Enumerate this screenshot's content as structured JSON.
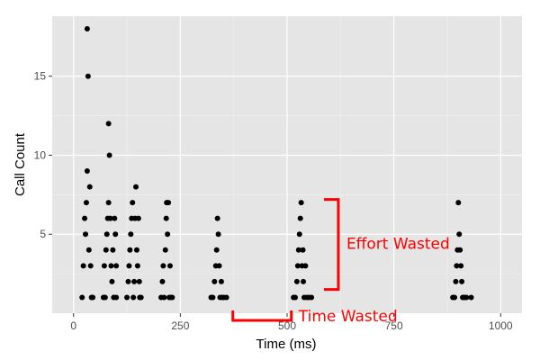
{
  "chart_data": {
    "type": "scatter",
    "title": "",
    "xlabel": "Time (ms)",
    "ylabel": "Call Count",
    "xlim": [
      -50,
      1050
    ],
    "ylim": [
      0,
      18.8
    ],
    "x_ticks": [
      0,
      250,
      500,
      750,
      1000
    ],
    "y_ticks": [
      5,
      10,
      15
    ],
    "grid": true,
    "legend": "none",
    "colors": {
      "panel": "#e5e5e5",
      "grid_major": "#ffffff",
      "grid_minor": "#f2f2f2",
      "points": "#000000",
      "annotation": "#ff0000"
    },
    "series": [
      {
        "points": [
          [
            20,
            1
          ],
          [
            23,
            3
          ],
          [
            26,
            6
          ],
          [
            28,
            5
          ],
          [
            30,
            7
          ],
          [
            32,
            9
          ],
          [
            32,
            18
          ],
          [
            34,
            15
          ],
          [
            36,
            4
          ],
          [
            38,
            8
          ],
          [
            40,
            3
          ],
          [
            42,
            1
          ],
          [
            45,
            1
          ],
          [
            70,
            1
          ],
          [
            72,
            3
          ],
          [
            74,
            1
          ],
          [
            76,
            4
          ],
          [
            78,
            5
          ],
          [
            80,
            6
          ],
          [
            82,
            7
          ],
          [
            82,
            12
          ],
          [
            84,
            10
          ],
          [
            86,
            6
          ],
          [
            88,
            3
          ],
          [
            90,
            2
          ],
          [
            92,
            4
          ],
          [
            94,
            1
          ],
          [
            96,
            6
          ],
          [
            98,
            5
          ],
          [
            100,
            1
          ],
          [
            100,
            3
          ],
          [
            125,
            1
          ],
          [
            128,
            2
          ],
          [
            130,
            3
          ],
          [
            132,
            4
          ],
          [
            134,
            5
          ],
          [
            136,
            6
          ],
          [
            138,
            7
          ],
          [
            140,
            1
          ],
          [
            142,
            2
          ],
          [
            144,
            6
          ],
          [
            146,
            8
          ],
          [
            148,
            4
          ],
          [
            150,
            3
          ],
          [
            152,
            6
          ],
          [
            154,
            2
          ],
          [
            155,
            1
          ],
          [
            158,
            1
          ],
          [
            205,
            1
          ],
          [
            208,
            2
          ],
          [
            210,
            3
          ],
          [
            212,
            1
          ],
          [
            215,
            4
          ],
          [
            217,
            6
          ],
          [
            218,
            7
          ],
          [
            220,
            5
          ],
          [
            222,
            7
          ],
          [
            224,
            1
          ],
          [
            226,
            3
          ],
          [
            228,
            1
          ],
          [
            231,
            1
          ],
          [
            322,
            1
          ],
          [
            326,
            1
          ],
          [
            330,
            2
          ],
          [
            333,
            3
          ],
          [
            335,
            4
          ],
          [
            337,
            6
          ],
          [
            339,
            5
          ],
          [
            341,
            3
          ],
          [
            343,
            1
          ],
          [
            346,
            2
          ],
          [
            348,
            1
          ],
          [
            352,
            1
          ],
          [
            358,
            1
          ],
          [
            515,
            1
          ],
          [
            519,
            1
          ],
          [
            523,
            2
          ],
          [
            525,
            3
          ],
          [
            527,
            4
          ],
          [
            529,
            5
          ],
          [
            531,
            6
          ],
          [
            533,
            7
          ],
          [
            535,
            3
          ],
          [
            537,
            4
          ],
          [
            538,
            2
          ],
          [
            540,
            1
          ],
          [
            543,
            3
          ],
          [
            546,
            1
          ],
          [
            551,
            1
          ],
          [
            557,
            1
          ],
          [
            888,
            1
          ],
          [
            892,
            1
          ],
          [
            895,
            2
          ],
          [
            897,
            3
          ],
          [
            899,
            4
          ],
          [
            901,
            7
          ],
          [
            903,
            5
          ],
          [
            905,
            4
          ],
          [
            907,
            3
          ],
          [
            909,
            2
          ],
          [
            911,
            1
          ],
          [
            913,
            1
          ],
          [
            916,
            1
          ],
          [
            920,
            1
          ],
          [
            931,
            1
          ]
        ]
      }
    ],
    "annotations": [
      {
        "text": "Effort Wasted",
        "type": "vertical-bracket",
        "x": 620,
        "y_range": [
          1.5,
          7.2
        ]
      },
      {
        "text": "Time Wasted",
        "type": "horizontal-bracket",
        "x_range": [
          373,
          510
        ],
        "y": 0
      }
    ]
  }
}
